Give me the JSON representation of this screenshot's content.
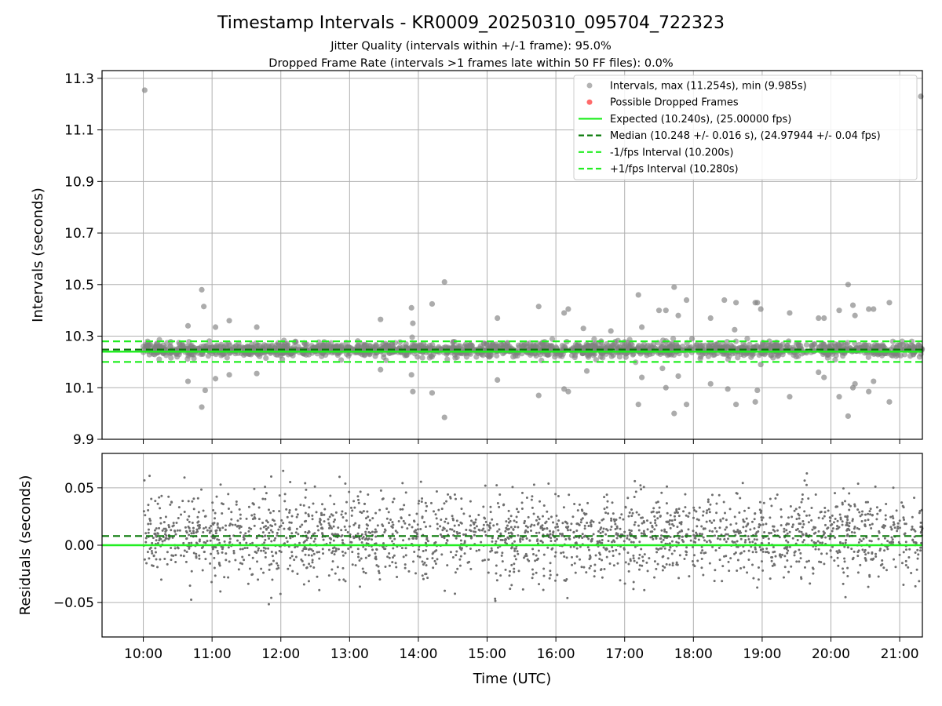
{
  "title": "Timestamp Intervals - KR0009_20250310_095704_722323",
  "subtitle_lines": [
    "Jitter Quality (intervals within +/-1 frame): 95.0%",
    "Dropped Frame Rate (intervals >1 frames late within 50 FF files): 0.0%"
  ],
  "colors": {
    "points": "#808080",
    "dropped": "#ff5050",
    "expected": "#22ee22",
    "median": "#0a7a0a",
    "interval": "#22ee22",
    "grid": "#b0b0b0"
  },
  "chart_data": [
    {
      "name": "intervals",
      "type": "scatter",
      "ylabel": "Intervals (seconds)",
      "xlabel": "",
      "x_unit": "hours UTC",
      "xlim": [
        9.4,
        21.33
      ],
      "ylim": [
        9.9,
        11.33
      ],
      "x_ticks": [
        10,
        11,
        12,
        13,
        14,
        15,
        16,
        17,
        18,
        19,
        20,
        21
      ],
      "y_ticks": [
        9.9,
        10.1,
        10.3,
        10.5,
        10.7,
        10.9,
        11.1,
        11.3
      ],
      "y_tick_labels": [
        "9.9",
        "10.1",
        "10.3",
        "10.5",
        "10.7",
        "10.9",
        "11.1",
        "11.3"
      ],
      "grid": true,
      "legend_position": "top-right",
      "legend": [
        "Intervals, max (11.254s), min (9.985s)",
        "Possible Dropped Frames",
        "Expected (10.240s), (25.00000 fps)",
        "Median (10.248 +/- 0.016 s), (24.97944 +/- 0.04 fps)",
        "-1/fps Interval (10.200s)",
        "+1/fps Interval (10.280s)"
      ],
      "expected": 10.24,
      "median": 10.248,
      "minus_interval": 10.2,
      "plus_interval": 10.28,
      "band_center": 10.248,
      "band_spread": 0.016,
      "outliers": [
        [
          10.02,
          11.254
        ],
        [
          21.33,
          11.23
        ],
        [
          10.65,
          10.34
        ],
        [
          10.85,
          10.48
        ],
        [
          10.88,
          10.415
        ],
        [
          11.05,
          10.335
        ],
        [
          11.25,
          10.36
        ],
        [
          11.65,
          10.335
        ],
        [
          12.35,
          10.27
        ],
        [
          13.45,
          10.365
        ],
        [
          13.9,
          10.41
        ],
        [
          13.92,
          10.35
        ],
        [
          14.2,
          10.425
        ],
        [
          14.38,
          10.51
        ],
        [
          15.15,
          10.37
        ],
        [
          15.75,
          10.415
        ],
        [
          16.12,
          10.39
        ],
        [
          16.18,
          10.405
        ],
        [
          16.4,
          10.33
        ],
        [
          16.8,
          10.32
        ],
        [
          17.2,
          10.46
        ],
        [
          17.25,
          10.335
        ],
        [
          17.5,
          10.4
        ],
        [
          17.6,
          10.4
        ],
        [
          17.72,
          10.49
        ],
        [
          17.78,
          10.38
        ],
        [
          17.9,
          10.44
        ],
        [
          17.98,
          10.29
        ],
        [
          18.25,
          10.37
        ],
        [
          18.45,
          10.44
        ],
        [
          18.6,
          10.325
        ],
        [
          18.62,
          10.43
        ],
        [
          18.9,
          10.43
        ],
        [
          18.93,
          10.43
        ],
        [
          18.98,
          10.405
        ],
        [
          19.4,
          10.39
        ],
        [
          19.82,
          10.37
        ],
        [
          19.9,
          10.37
        ],
        [
          20.25,
          10.5
        ],
        [
          20.32,
          10.42
        ],
        [
          20.35,
          10.38
        ],
        [
          20.55,
          10.405
        ],
        [
          20.62,
          10.405
        ],
        [
          20.85,
          10.43
        ],
        [
          20.12,
          10.4
        ],
        [
          10.65,
          10.125
        ],
        [
          10.85,
          10.025
        ],
        [
          10.9,
          10.09
        ],
        [
          11.05,
          10.135
        ],
        [
          11.25,
          10.15
        ],
        [
          11.65,
          10.155
        ],
        [
          13.45,
          10.17
        ],
        [
          13.9,
          10.15
        ],
        [
          13.92,
          10.085
        ],
        [
          14.2,
          10.08
        ],
        [
          14.38,
          9.985
        ],
        [
          15.15,
          10.13
        ],
        [
          15.75,
          10.07
        ],
        [
          16.12,
          10.095
        ],
        [
          16.18,
          10.085
        ],
        [
          16.45,
          10.165
        ],
        [
          17.2,
          10.035
        ],
        [
          17.25,
          10.14
        ],
        [
          17.55,
          10.175
        ],
        [
          17.6,
          10.1
        ],
        [
          17.72,
          10.0
        ],
        [
          17.78,
          10.145
        ],
        [
          17.9,
          10.035
        ],
        [
          18.25,
          10.115
        ],
        [
          18.5,
          10.095
        ],
        [
          18.62,
          10.035
        ],
        [
          18.9,
          10.045
        ],
        [
          18.93,
          10.09
        ],
        [
          19.4,
          10.065
        ],
        [
          19.82,
          10.16
        ],
        [
          19.9,
          10.14
        ],
        [
          20.25,
          9.99
        ],
        [
          20.32,
          10.1
        ],
        [
          20.35,
          10.115
        ],
        [
          20.55,
          10.085
        ],
        [
          20.62,
          10.125
        ],
        [
          20.85,
          10.045
        ],
        [
          20.12,
          10.065
        ],
        [
          18.98,
          10.19
        ]
      ]
    },
    {
      "name": "residuals",
      "type": "scatter",
      "ylabel": "Residuals (seconds)",
      "xlabel": "Time (UTC)",
      "x_unit": "hours UTC",
      "xlim": [
        9.4,
        21.33
      ],
      "ylim": [
        -0.08,
        0.08
      ],
      "x_ticks": [
        10,
        11,
        12,
        13,
        14,
        15,
        16,
        17,
        18,
        19,
        20,
        21
      ],
      "x_tick_labels": [
        "10:00",
        "11:00",
        "12:00",
        "13:00",
        "14:00",
        "15:00",
        "16:00",
        "17:00",
        "18:00",
        "19:00",
        "20:00",
        "21:00"
      ],
      "y_ticks": [
        -0.05,
        0.0,
        0.05
      ],
      "y_tick_labels": [
        "−0.05",
        "0.00",
        "0.05"
      ],
      "grid": true,
      "zero_line": 0.0,
      "median_line": 0.008,
      "band_center": 0.008,
      "band_spread": 0.018
    }
  ]
}
